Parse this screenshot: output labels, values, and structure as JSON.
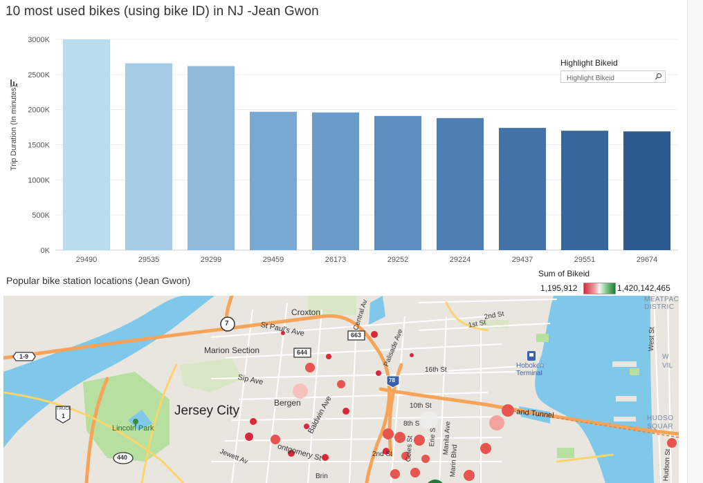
{
  "chart_title": "10 most used bikes (using bike ID) in NJ -Jean Gwon",
  "chart_data": {
    "type": "bar",
    "title": "10 most used bikes (using bike ID) in NJ -Jean Gwon",
    "xlabel": "",
    "ylabel": "Trip Duration (In minutes)",
    "categories": [
      "29490",
      "29535",
      "29299",
      "29459",
      "26173",
      "29252",
      "29224",
      "29437",
      "29551",
      "29674"
    ],
    "values": [
      3000000,
      2660000,
      2620000,
      1970000,
      1960000,
      1910000,
      1880000,
      1740000,
      1700000,
      1690000
    ],
    "ylim": [
      0,
      3000000
    ],
    "yticks": [
      0,
      500000,
      1000000,
      1500000,
      2000000,
      2500000,
      3000000
    ],
    "ytick_labels": [
      "0K",
      "500K",
      "1000K",
      "1500K",
      "2000K",
      "2500K",
      "3000K"
    ],
    "bar_colors": [
      "#b9dcef",
      "#a6cbe6",
      "#8fbadc",
      "#79a9d2",
      "#6b9bc9",
      "#5c8dbf",
      "#4e7fb4",
      "#4173a8",
      "#36679c",
      "#2d5b8e"
    ],
    "grid": true
  },
  "highlight": {
    "label": "Highlight Bikeid",
    "placeholder": "Highlight Bikeid"
  },
  "map": {
    "title": "Popular bike station locations (Jean Gwon)",
    "legend": {
      "title": "Sum of Bikeid",
      "min": "1,195,912",
      "max": "1,420,142,465"
    },
    "labels": {
      "croxton": "Croxton",
      "st_pauls_ave": "St Paul's Ave",
      "marion_section": "Marion Section",
      "sip_ave": "Sip Ave",
      "bergen": "Bergen",
      "jersey_city": "Jersey City",
      "lincoln_park": "Lincoln Park",
      "baldwin_ave": "Baldwin Ave",
      "jewett_ave": "Jewett Av",
      "montgomery_st": "ontgomery St",
      "second_st_top": "2nd St",
      "first_st": "1st St",
      "sixteenth_st": "16th St",
      "tenth_st": "10th St",
      "eighth_st": "8th S",
      "second_st_bottom": "2nd St",
      "coles_st": "Coles St",
      "erie_st": "Erie S",
      "manila_ave": "Manila Ave",
      "marin_blvd": "Marin Blvd",
      "holland_tunnel": "and Tunnel",
      "hoboken_terminal": "Hoboken Terminal",
      "meatpacking": "MEATPACI DISTRIC",
      "west_st": "West St",
      "west_village": "W VIL",
      "hudson_square": "HUDSO SQUAR",
      "hudson_st": "Hudson St",
      "palisade_ave": "Palisade Ave",
      "central_ave": "Central Av",
      "brinkerhoff": "Brin",
      "route_7": "7",
      "route_1_9": "1-9",
      "route_truck_1": "1",
      "truck_text": "TRUCK",
      "route_440": "440",
      "route_644": "644",
      "route_663": "663",
      "route_78": "78"
    },
    "station_colors": [
      "#d9283a",
      "#e8554f",
      "#f08c84",
      "#f7c1bb",
      "#1f7a3a"
    ]
  }
}
